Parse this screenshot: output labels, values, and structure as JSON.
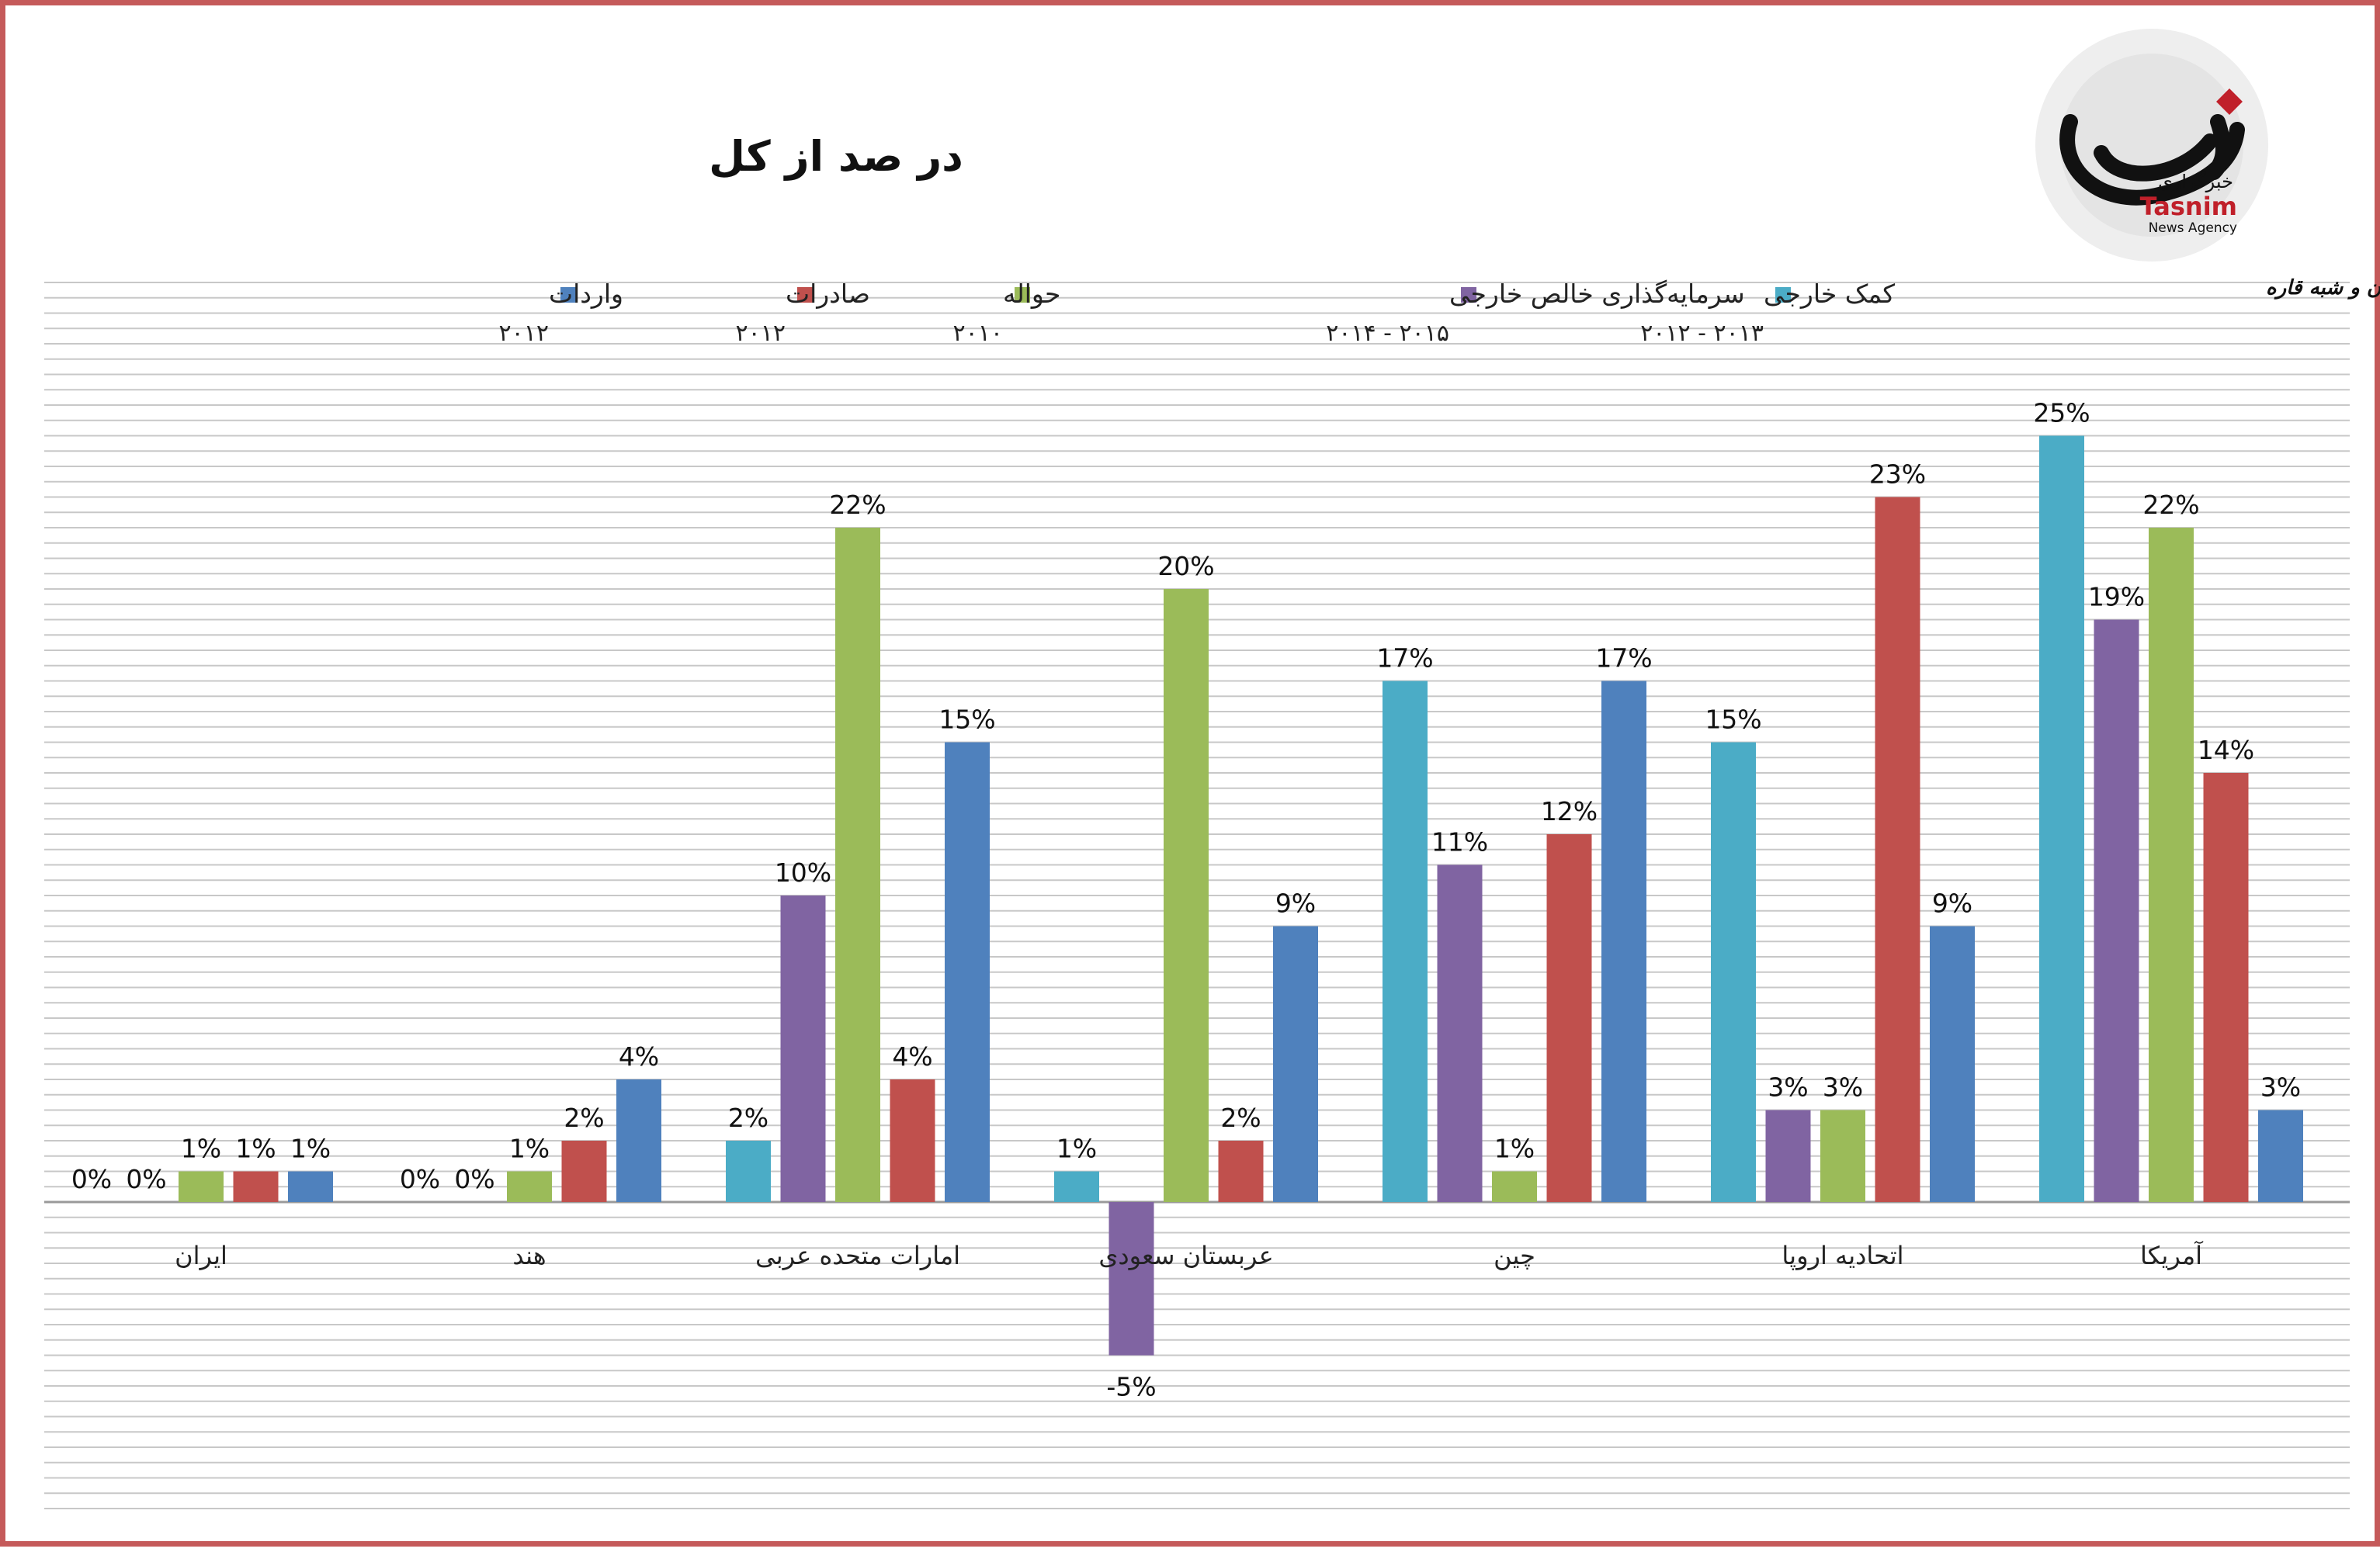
{
  "chart_data": {
    "type": "bar",
    "title": "در صد از کل",
    "categories": [
      "آمریکا",
      "اتحادیه اروپا",
      "چین",
      "عربستان سعودی",
      "امارات متحده عربی",
      "هند",
      "ایران"
    ],
    "series": [
      {
        "name": "کمک خارجی",
        "period": "۲۰۱۲ - ۲۰۱۳",
        "color": "#4bacc6",
        "values": [
          25,
          15,
          17,
          1,
          2,
          0,
          0
        ],
        "labels": [
          "25%",
          "15%",
          "17%",
          "1%",
          "2%",
          "0%",
          "0%"
        ]
      },
      {
        "name": "سرمایه‌گذاری خالص خارجی",
        "period": "۲۰۱۴ - ۲۰۱۵",
        "color": "#8064a2",
        "values": [
          19,
          3,
          11,
          -5,
          10,
          0,
          0
        ],
        "labels": [
          "19%",
          "3%",
          "11%",
          "-5%",
          "10%",
          "0%",
          "0%"
        ]
      },
      {
        "name": "حواله",
        "period": "۲۰۱۰",
        "color": "#9bbb59",
        "values": [
          22,
          3,
          1,
          20,
          22,
          1,
          1
        ],
        "labels": [
          "22%",
          "3%",
          "1%",
          "20%",
          "22%",
          "1%",
          "1%"
        ]
      },
      {
        "name": "صادرات",
        "period": "۲۰۱۲",
        "color": "#c0504d",
        "values": [
          14,
          23,
          12,
          2,
          4,
          2,
          1
        ],
        "labels": [
          "14%",
          "23%",
          "12%",
          "2%",
          "4%",
          "2%",
          "1%"
        ]
      },
      {
        "name": "واردات",
        "period": "۲۰۱۲",
        "color": "#4f81bd",
        "values": [
          3,
          9,
          17,
          9,
          15,
          4,
          1
        ],
        "labels": [
          "3%",
          "9%",
          "17%",
          "9%",
          "15%",
          "4%",
          "1%"
        ]
      }
    ],
    "ylim": [
      -10,
      30
    ],
    "grid": true,
    "legend_position": "top",
    "frame_color": "#c55a5a"
  },
  "logo": {
    "agency_fa": "خبرگزاری",
    "agency_en": "Tasnim",
    "agency_sub": "News Agency",
    "office": "دفتر منطقه‌ای افغانستان، پاکستان و شبه قاره"
  }
}
